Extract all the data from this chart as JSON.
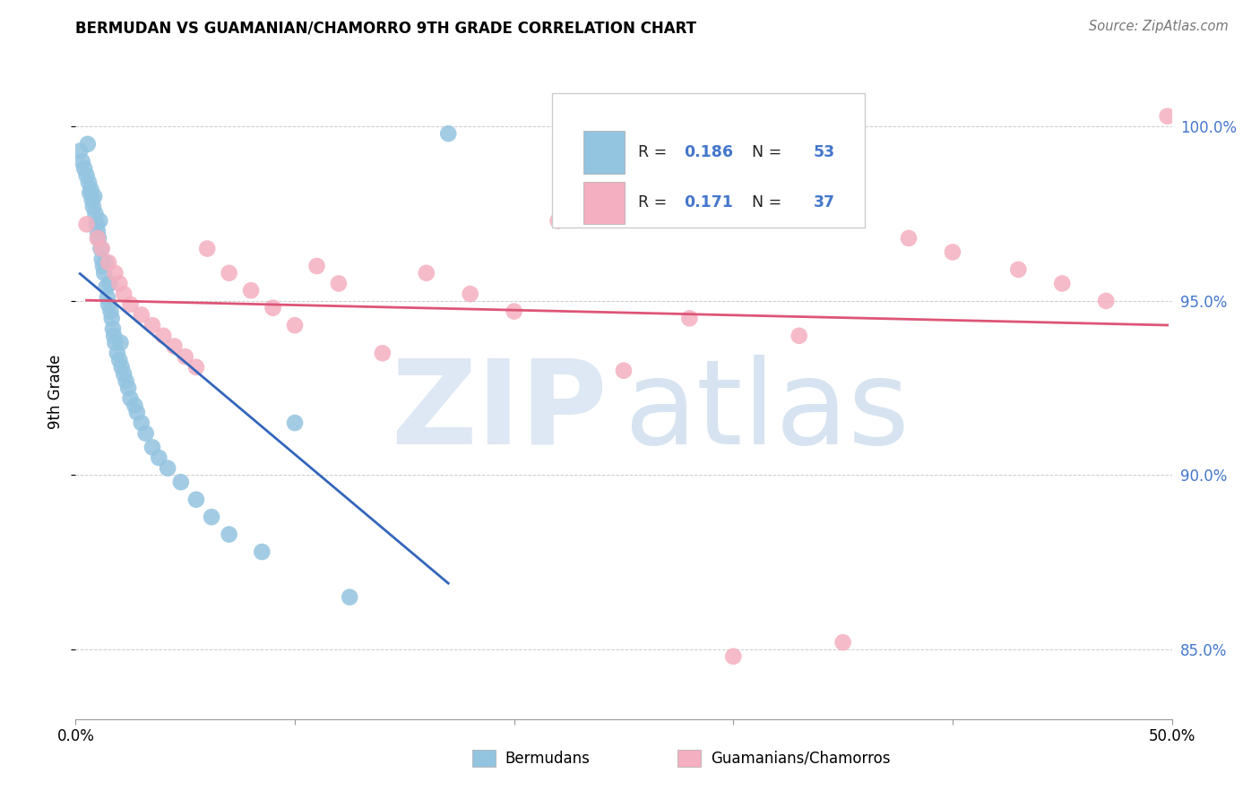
{
  "title": "BERMUDAN VS GUAMANIAN/CHAMORRO 9TH GRADE CORRELATION CHART",
  "source": "Source: ZipAtlas.com",
  "ylabel": "9th Grade",
  "xlim": [
    0.0,
    50.0
  ],
  "ylim": [
    83.0,
    101.8
  ],
  "yticks": [
    85.0,
    90.0,
    95.0,
    100.0
  ],
  "ytick_labels": [
    "85.0%",
    "90.0%",
    "95.0%",
    "100.0%"
  ],
  "xtick_positions": [
    0,
    10,
    20,
    30,
    40,
    50
  ],
  "blue_R": 0.186,
  "blue_N": 53,
  "pink_R": 0.171,
  "pink_N": 37,
  "blue_color": "#93c4e0",
  "pink_color": "#f4afc0",
  "blue_line_color": "#3366bb",
  "pink_line_color": "#dd5577",
  "legend_label_blue": "Bermudans",
  "legend_label_pink": "Guamanians/Chamorros",
  "blue_x": [
    0.2,
    0.3,
    0.4,
    0.5,
    0.55,
    0.6,
    0.65,
    0.7,
    0.75,
    0.8,
    0.85,
    0.9,
    0.95,
    1.0,
    1.05,
    1.1,
    1.15,
    1.2,
    1.25,
    1.3,
    1.35,
    1.4,
    1.45,
    1.5,
    1.55,
    1.6,
    1.65,
    1.7,
    1.75,
    1.8,
    1.9,
    2.0,
    2.05,
    2.1,
    2.2,
    2.3,
    2.4,
    2.5,
    2.7,
    2.8,
    3.0,
    3.2,
    3.5,
    3.8,
    4.2,
    4.8,
    5.5,
    6.2,
    7.0,
    8.5,
    10.0,
    12.5,
    17.0
  ],
  "blue_y": [
    99.3,
    99.0,
    98.8,
    98.6,
    99.5,
    98.4,
    98.1,
    98.2,
    97.9,
    97.7,
    98.0,
    97.5,
    97.2,
    97.0,
    96.8,
    97.3,
    96.5,
    96.2,
    96.0,
    95.8,
    96.1,
    95.4,
    95.1,
    94.9,
    95.5,
    94.7,
    94.5,
    94.2,
    94.0,
    93.8,
    93.5,
    93.3,
    93.8,
    93.1,
    92.9,
    92.7,
    92.5,
    92.2,
    92.0,
    91.8,
    91.5,
    91.2,
    90.8,
    90.5,
    90.2,
    89.8,
    89.3,
    88.8,
    88.3,
    87.8,
    91.5,
    86.5,
    99.8
  ],
  "pink_x": [
    0.5,
    1.0,
    1.2,
    1.5,
    1.8,
    2.0,
    2.2,
    2.5,
    3.0,
    3.5,
    4.0,
    4.5,
    5.0,
    5.5,
    6.0,
    7.0,
    8.0,
    9.0,
    10.0,
    11.0,
    12.0,
    14.0,
    16.0,
    18.0,
    20.0,
    22.0,
    25.0,
    28.0,
    30.0,
    33.0,
    35.0,
    38.0,
    40.0,
    43.0,
    45.0,
    47.0,
    49.8
  ],
  "pink_y": [
    97.2,
    96.8,
    96.5,
    96.1,
    95.8,
    95.5,
    95.2,
    94.9,
    94.6,
    94.3,
    94.0,
    93.7,
    93.4,
    93.1,
    96.5,
    95.8,
    95.3,
    94.8,
    94.3,
    96.0,
    95.5,
    93.5,
    95.8,
    95.2,
    94.7,
    97.3,
    93.0,
    94.5,
    84.8,
    94.0,
    85.2,
    96.8,
    96.4,
    95.9,
    95.5,
    95.0,
    100.3
  ]
}
